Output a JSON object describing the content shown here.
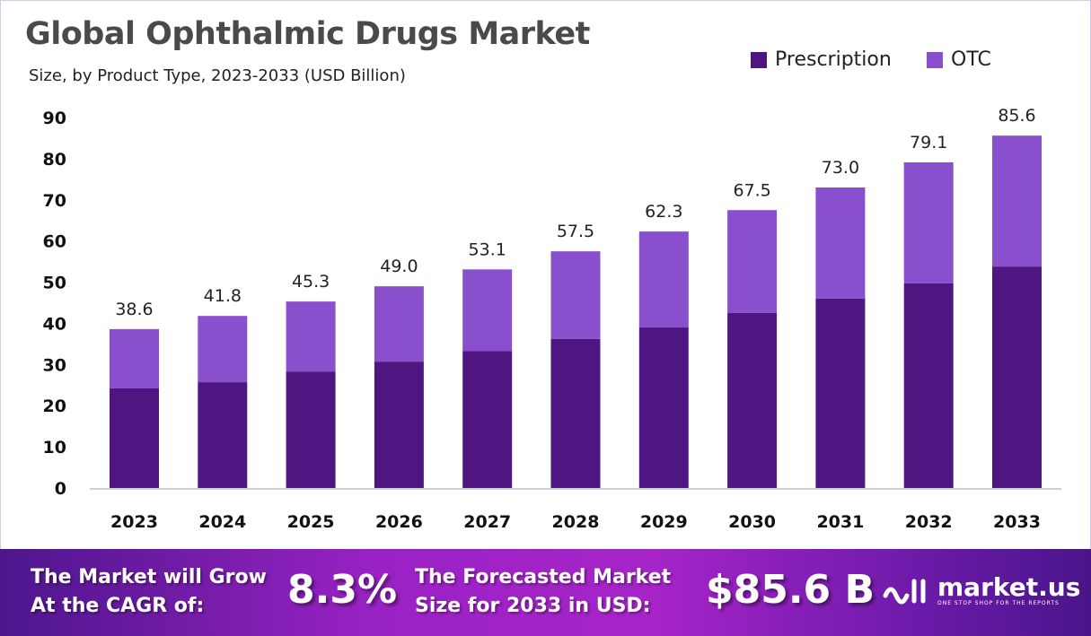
{
  "chart_data": {
    "type": "bar",
    "stacked": true,
    "title": "Global Ophthalmic Drugs Market",
    "subtitle": "Size, by Product Type, 2023-2033 (USD Billion)",
    "categories": [
      "2023",
      "2024",
      "2025",
      "2026",
      "2027",
      "2028",
      "2029",
      "2030",
      "2031",
      "2032",
      "2033"
    ],
    "series": [
      {
        "name": "Prescription",
        "color": "#4f1681",
        "values": [
          24.2,
          25.7,
          28.3,
          30.7,
          33.3,
          36.2,
          39.0,
          42.5,
          46.0,
          49.7,
          53.8
        ]
      },
      {
        "name": "OTC",
        "color": "#8a4fcc",
        "values": [
          14.4,
          16.1,
          17.0,
          18.3,
          19.8,
          21.3,
          23.3,
          25.0,
          27.0,
          29.4,
          31.8
        ]
      }
    ],
    "totals": [
      "38.6",
      "41.8",
      "45.3",
      "49.0",
      "53.1",
      "57.5",
      "62.3",
      "67.5",
      "73.0",
      "79.1",
      "85.6"
    ],
    "yticks": [
      "0",
      "10",
      "20",
      "30",
      "40",
      "50",
      "60",
      "70",
      "80",
      "90"
    ],
    "ylim": [
      0,
      90
    ],
    "grid": false,
    "legend_placement": "top-right"
  },
  "footer": {
    "cagr_text_1": "The Market will Grow",
    "cagr_text_2": "At the CAGR of:",
    "cagr_value": "8.3%",
    "forecast_text_1": "The Forecasted Market",
    "forecast_text_2": "Size for 2033 in USD:",
    "forecast_value": "$85.6 B",
    "logo": "market.us",
    "tagline": "ONE STOP SHOP FOR THE REPORTS"
  }
}
